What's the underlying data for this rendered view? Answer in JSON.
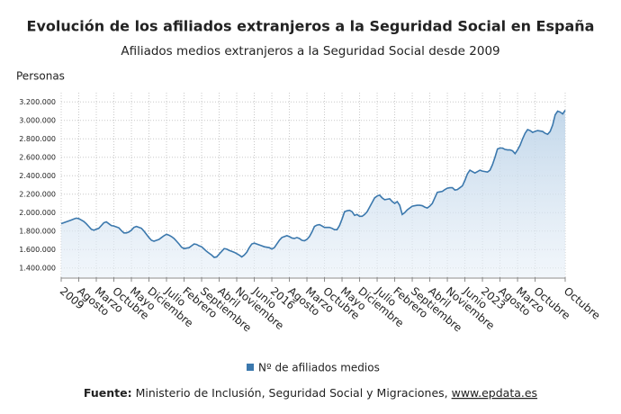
{
  "chart_data": {
    "type": "area",
    "title": "Evolución de los afiliados extranjeros a la Seguridad Social en España",
    "subtitle": "Afiliados medios extranjeros a la Seguridad Social desde 2009",
    "y_label": "Personas",
    "source_label": "Fuente:",
    "source_text": "Ministerio de Inclusión, Seguridad Social y Migraciones,",
    "source_link": "www.epdata.es",
    "legend": "bottom",
    "grid": true,
    "ylim": [
      1300000,
      3300000
    ],
    "yticks": [
      {
        "value": 1400000,
        "label": "1.400.000"
      },
      {
        "value": 1600000,
        "label": "1.600.000"
      },
      {
        "value": 1800000,
        "label": "1.800.000"
      },
      {
        "value": 2000000,
        "label": "2.000.000"
      },
      {
        "value": 2200000,
        "label": "2.200.000"
      },
      {
        "value": 2400000,
        "label": "2.400.000"
      },
      {
        "value": 2600000,
        "label": "2.600.000"
      },
      {
        "value": 2800000,
        "label": "2.800.000"
      },
      {
        "value": 3000000,
        "label": "3.000.000"
      },
      {
        "value": 3200000,
        "label": "3.200.000"
      }
    ],
    "categories": [
      "2009",
      null,
      null,
      null,
      null,
      null,
      null,
      "Agosto",
      null,
      null,
      null,
      null,
      null,
      null,
      "Marzo",
      null,
      null,
      null,
      null,
      null,
      null,
      "Octubre",
      null,
      null,
      null,
      null,
      null,
      null,
      "Mayo",
      null,
      null,
      null,
      null,
      null,
      null,
      "Diciembre",
      null,
      null,
      null,
      null,
      null,
      null,
      "Julio",
      null,
      null,
      null,
      null,
      null,
      null,
      "Febrero",
      null,
      null,
      null,
      null,
      null,
      null,
      "Septiembre",
      null,
      null,
      null,
      null,
      null,
      null,
      "Abril",
      null,
      null,
      null,
      null,
      null,
      null,
      "Noviembre",
      null,
      null,
      null,
      null,
      null,
      null,
      "Junio",
      null,
      null,
      null,
      null,
      null,
      null,
      "2016",
      null,
      null,
      null,
      null,
      null,
      null,
      "Agosto",
      null,
      null,
      null,
      null,
      null,
      null,
      "Marzo",
      null,
      null,
      null,
      null,
      null,
      null,
      "Octubre",
      null,
      null,
      null,
      null,
      null,
      null,
      "Mayo",
      null,
      null,
      null,
      null,
      null,
      null,
      "Diciembre",
      null,
      null,
      null,
      null,
      null,
      null,
      "Julio",
      null,
      null,
      null,
      null,
      null,
      null,
      "Febrero",
      null,
      null,
      null,
      null,
      null,
      null,
      "Septiembre",
      null,
      null,
      null,
      null,
      null,
      null,
      "Abril",
      null,
      null,
      null,
      null,
      null,
      null,
      "Noviembre",
      null,
      null,
      null,
      null,
      null,
      null,
      "Junio",
      null,
      null,
      null,
      null,
      null,
      null,
      "2023",
      null,
      null,
      null,
      null,
      null,
      null,
      "Agosto",
      null,
      null,
      null,
      null,
      null,
      null,
      "Marzo",
      null,
      null,
      null,
      null,
      null,
      null,
      "Octubre",
      null,
      null,
      null,
      null,
      null,
      null,
      null,
      null,
      null,
      null,
      null,
      "Octubre"
    ],
    "series": [
      {
        "name": "Nº de afiliados medios",
        "color": "#3b78ad",
        "values": [
          1880000,
          1890000,
          1900000,
          1910000,
          1920000,
          1930000,
          1940000,
          1935000,
          1920000,
          1905000,
          1880000,
          1850000,
          1820000,
          1810000,
          1820000,
          1830000,
          1860000,
          1890000,
          1900000,
          1880000,
          1860000,
          1855000,
          1845000,
          1835000,
          1805000,
          1780000,
          1780000,
          1790000,
          1810000,
          1840000,
          1850000,
          1840000,
          1830000,
          1800000,
          1765000,
          1730000,
          1700000,
          1690000,
          1700000,
          1710000,
          1730000,
          1750000,
          1765000,
          1755000,
          1740000,
          1720000,
          1690000,
          1660000,
          1625000,
          1610000,
          1615000,
          1620000,
          1640000,
          1660000,
          1655000,
          1640000,
          1630000,
          1605000,
          1580000,
          1560000,
          1540000,
          1515000,
          1520000,
          1550000,
          1580000,
          1610000,
          1605000,
          1590000,
          1580000,
          1570000,
          1555000,
          1540000,
          1520000,
          1540000,
          1570000,
          1620000,
          1660000,
          1670000,
          1660000,
          1650000,
          1640000,
          1630000,
          1625000,
          1620000,
          1605000,
          1620000,
          1660000,
          1700000,
          1730000,
          1740000,
          1750000,
          1740000,
          1725000,
          1720000,
          1730000,
          1720000,
          1700000,
          1695000,
          1710000,
          1740000,
          1790000,
          1850000,
          1865000,
          1870000,
          1855000,
          1840000,
          1840000,
          1840000,
          1830000,
          1815000,
          1815000,
          1860000,
          1930000,
          2010000,
          2020000,
          2025000,
          2010000,
          1970000,
          1980000,
          1960000,
          1960000,
          1980000,
          2010000,
          2060000,
          2110000,
          2160000,
          2180000,
          2190000,
          2160000,
          2140000,
          2145000,
          2150000,
          2120000,
          2100000,
          2120000,
          2080000,
          1980000,
          2000000,
          2030000,
          2050000,
          2070000,
          2075000,
          2080000,
          2080000,
          2075000,
          2060000,
          2050000,
          2070000,
          2100000,
          2160000,
          2220000,
          2225000,
          2230000,
          2250000,
          2265000,
          2270000,
          2270000,
          2245000,
          2250000,
          2270000,
          2290000,
          2350000,
          2420000,
          2460000,
          2445000,
          2430000,
          2445000,
          2460000,
          2450000,
          2445000,
          2440000,
          2460000,
          2520000,
          2600000,
          2690000,
          2700000,
          2700000,
          2685000,
          2680000,
          2680000,
          2670000,
          2640000,
          2680000,
          2730000,
          2800000,
          2860000,
          2900000,
          2890000,
          2870000,
          2880000,
          2890000,
          2885000,
          2880000,
          2860000,
          2850000,
          2880000,
          2950000,
          3060000,
          3100000,
          3090000,
          3070000,
          3110000
        ]
      }
    ]
  }
}
